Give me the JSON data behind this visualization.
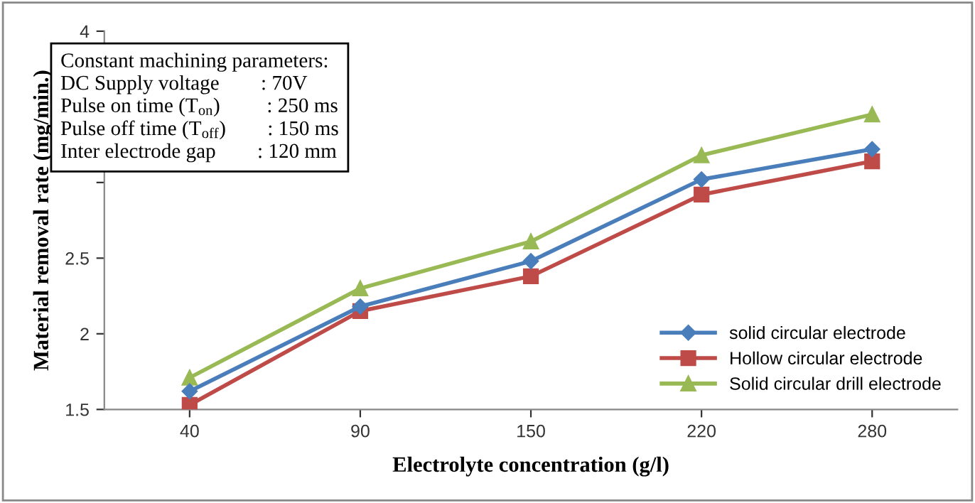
{
  "chart_data": {
    "type": "line",
    "xlabel": "Electrolyte concentration (g/l)",
    "ylabel": "Material removal rate (mg/min.)",
    "categories": [
      "40",
      "90",
      "150",
      "220",
      "280"
    ],
    "series": [
      {
        "name": "solid circular electrode",
        "color": "#4a7ebb",
        "marker": "diamond",
        "values": [
          1.62,
          2.18,
          2.48,
          3.02,
          3.22
        ]
      },
      {
        "name": "Hollow circular electrode",
        "color": "#be4b48",
        "marker": "square",
        "values": [
          1.53,
          2.15,
          2.38,
          2.92,
          3.14
        ]
      },
      {
        "name": "Solid circular drill electrode",
        "color": "#98b954",
        "marker": "triangle",
        "values": [
          1.71,
          2.3,
          2.61,
          3.18,
          3.45
        ]
      }
    ],
    "ylim": [
      1.5,
      4
    ],
    "yticks": [
      1.5,
      2,
      2.5,
      {
        "value": 3,
        "label": null
      },
      {
        "value": 3.5,
        "label": null
      },
      4
    ],
    "grid": false,
    "legend": "bottom right",
    "annotations": [
      "Constant machining parameters:\nDC Supply voltage        : 70V\nPulse on time (T$_{on}$)         : 250 ms\nPulse off time (T$_{off}$)        : 150 ms\nInter electrode gap        : 120 mm"
    ]
  }
}
